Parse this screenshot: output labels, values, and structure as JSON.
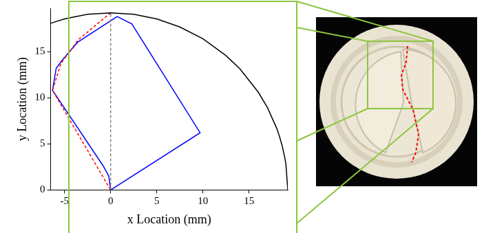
{
  "chart_data": {
    "type": "scatter",
    "x_label": "x Location (mm)",
    "y_label": "y Location (mm)",
    "xlim": [
      -6.5,
      19.2
    ],
    "xticks": [
      -5,
      0,
      5,
      10,
      15
    ],
    "ylim": [
      0,
      19.7
    ],
    "yticks": [
      0,
      5,
      10,
      15
    ],
    "grid": false,
    "series": [
      {
        "color": "#000000",
        "line_style": "solid",
        "x": [
          -6.5,
          -5,
          -2.5,
          0,
          2.5,
          5,
          7.5,
          10,
          12.5,
          14,
          16,
          17,
          18,
          18.3,
          18.6,
          18.9,
          19,
          19.2
        ],
        "y": [
          18.07,
          18.54,
          19.04,
          19.2,
          19.04,
          18.54,
          17.67,
          16.39,
          14.57,
          13.14,
          10.61,
          8.92,
          6.69,
          5.81,
          4.76,
          3.38,
          2.78,
          0
        ]
      },
      {
        "color": "#808080",
        "line_style": "dashed",
        "x": [
          0,
          0
        ],
        "y": [
          0,
          19.2
        ]
      },
      {
        "color": "#ff0000",
        "line_style": "dashed",
        "x": [
          0,
          -3.5,
          -5.4,
          -6.3,
          0
        ],
        "y": [
          19.2,
          16.3,
          13.7,
          10.8,
          0
        ]
      },
      {
        "color": "#0000ff",
        "line_style": "solid",
        "x": [
          0,
          -0.2,
          -0.8,
          -6.3,
          -5.9,
          -5.3,
          -3.6,
          0.7,
          2.3,
          9.7,
          0
        ],
        "y": [
          0,
          1.5,
          2.6,
          10.8,
          13.2,
          14.0,
          16.0,
          18.8,
          18.0,
          6.2,
          0
        ]
      }
    ]
  }
}
